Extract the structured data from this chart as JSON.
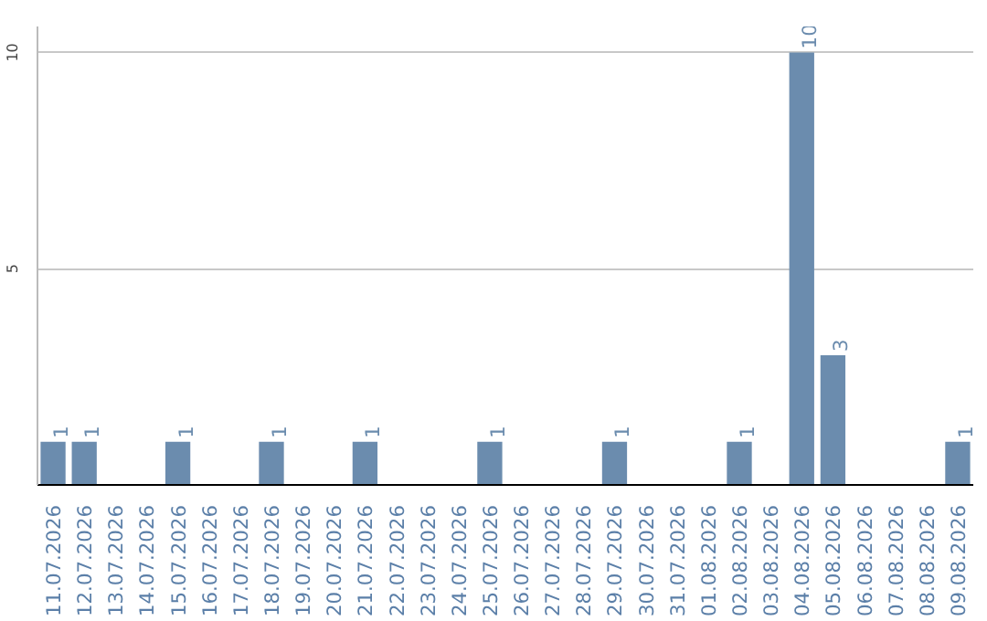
{
  "chart_data": {
    "type": "bar",
    "categories": [
      "11.07.2026",
      "12.07.2026",
      "13.07.2026",
      "14.07.2026",
      "15.07.2026",
      "16.07.2026",
      "17.07.2026",
      "18.07.2026",
      "19.07.2026",
      "20.07.2026",
      "21.07.2026",
      "22.07.2026",
      "23.07.2026",
      "24.07.2026",
      "25.07.2026",
      "26.07.2026",
      "27.07.2026",
      "28.07.2026",
      "29.07.2026",
      "30.07.2026",
      "31.07.2026",
      "01.08.2026",
      "02.08.2026",
      "03.08.2026",
      "04.08.2026",
      "05.08.2026",
      "06.08.2026",
      "07.08.2026",
      "08.08.2026",
      "09.08.2026"
    ],
    "values": [
      1,
      1,
      0,
      0,
      1,
      0,
      0,
      1,
      0,
      0,
      1,
      0,
      0,
      0,
      1,
      0,
      0,
      0,
      1,
      0,
      0,
      0,
      1,
      0,
      10,
      3,
      0,
      0,
      0,
      1
    ],
    "value_labels": [
      "1",
      "1",
      null,
      null,
      "1",
      null,
      null,
      "1",
      null,
      null,
      "1",
      null,
      null,
      null,
      "1",
      null,
      null,
      null,
      "1",
      null,
      null,
      null,
      "1",
      null,
      "10",
      "3",
      null,
      null,
      null,
      "1"
    ],
    "color": "#6b8cae",
    "ylim": [
      0,
      10.6
    ],
    "yticks": [
      5,
      10
    ],
    "grid": "y"
  }
}
